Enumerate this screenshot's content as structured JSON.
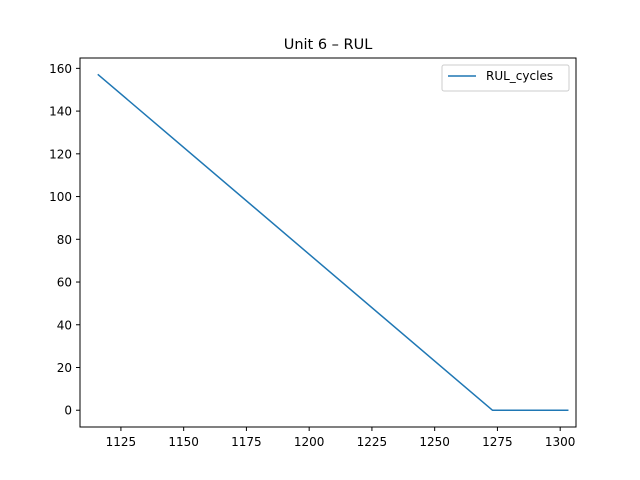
{
  "chart_data": {
    "type": "line",
    "title": "Unit 6  –  RUL",
    "xlabel": "",
    "ylabel": "",
    "xlim": [
      1108.7,
      1306.3
    ],
    "ylim": [
      -7.85,
      164.85
    ],
    "xticks": [
      1125,
      1150,
      1175,
      1200,
      1225,
      1250,
      1275,
      1300
    ],
    "yticks": [
      0,
      20,
      40,
      60,
      80,
      100,
      120,
      140,
      160
    ],
    "grid": false,
    "legend": "top-right",
    "series": [
      {
        "name": "RUL_cycles",
        "color": "#1f77b4",
        "x": [
          1116,
          1273,
          1303
        ],
        "y": [
          157,
          0,
          0
        ]
      }
    ]
  }
}
